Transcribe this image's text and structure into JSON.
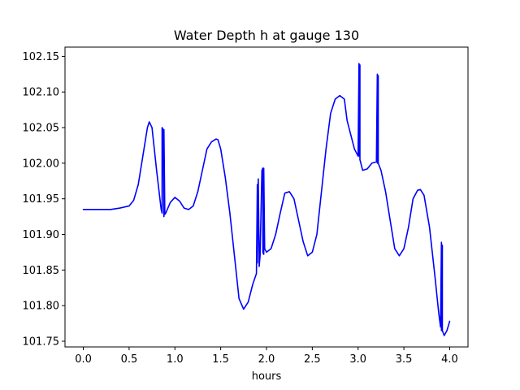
{
  "chart_data": {
    "type": "line",
    "title": "Water Depth h at gauge 130",
    "xlabel": "hours",
    "ylabel": "",
    "xlim": [
      -0.2,
      4.2
    ],
    "ylim": [
      101.742,
      102.163
    ],
    "xticks": [
      0.0,
      0.5,
      1.0,
      1.5,
      2.0,
      2.5,
      3.0,
      3.5,
      4.0
    ],
    "xtick_labels": [
      "0.0",
      "0.5",
      "1.0",
      "1.5",
      "2.0",
      "2.5",
      "3.0",
      "3.5",
      "4.0"
    ],
    "yticks": [
      101.75,
      101.8,
      101.85,
      101.9,
      101.95,
      102.0,
      102.05,
      102.1,
      102.15
    ],
    "ytick_labels": [
      "101.75",
      "101.80",
      "101.85",
      "101.90",
      "101.95",
      "102.00",
      "102.05",
      "102.10",
      "102.15"
    ],
    "grid": false,
    "series": [
      {
        "color": "#0000ff",
        "x": [
          0.0,
          0.1,
          0.2,
          0.3,
          0.4,
          0.5,
          0.55,
          0.6,
          0.65,
          0.7,
          0.72,
          0.75,
          0.8,
          0.85,
          0.86,
          0.86,
          0.87,
          0.88,
          0.88,
          0.89,
          0.89,
          0.9,
          0.95,
          1.0,
          1.05,
          1.1,
          1.15,
          1.2,
          1.25,
          1.3,
          1.35,
          1.4,
          1.45,
          1.47,
          1.5,
          1.55,
          1.6,
          1.65,
          1.7,
          1.75,
          1.8,
          1.85,
          1.89,
          1.9,
          1.9,
          1.91,
          1.92,
          1.92,
          1.93,
          1.95,
          1.96,
          1.96,
          1.97,
          1.97,
          1.98,
          2.0,
          2.05,
          2.1,
          2.15,
          2.2,
          2.25,
          2.3,
          2.35,
          2.4,
          2.45,
          2.5,
          2.55,
          2.6,
          2.65,
          2.7,
          2.75,
          2.8,
          2.85,
          2.88,
          2.92,
          2.96,
          3.0,
          3.01,
          3.01,
          3.02,
          3.02,
          3.05,
          3.1,
          3.15,
          3.2,
          3.21,
          3.21,
          3.22,
          3.22,
          3.25,
          3.3,
          3.35,
          3.4,
          3.45,
          3.5,
          3.55,
          3.6,
          3.65,
          3.68,
          3.72,
          3.78,
          3.84,
          3.88,
          3.9,
          3.91,
          3.91,
          3.92,
          3.92,
          3.94,
          3.97,
          4.0
        ],
        "y": [
          101.935,
          101.935,
          101.935,
          101.935,
          101.937,
          101.94,
          101.948,
          101.97,
          102.01,
          102.05,
          102.058,
          102.05,
          101.99,
          101.935,
          101.93,
          102.05,
          102.048,
          101.925,
          102.047,
          101.928,
          101.928,
          101.93,
          101.945,
          101.952,
          101.947,
          101.937,
          101.935,
          101.94,
          101.96,
          101.99,
          102.02,
          102.03,
          102.034,
          102.033,
          102.02,
          101.98,
          101.93,
          101.87,
          101.81,
          101.795,
          101.805,
          101.83,
          101.845,
          101.97,
          101.86,
          101.978,
          101.87,
          101.855,
          101.87,
          101.99,
          101.993,
          101.875,
          101.872,
          101.993,
          101.88,
          101.875,
          101.88,
          101.9,
          101.93,
          101.958,
          101.96,
          101.95,
          101.92,
          101.89,
          101.87,
          101.875,
          101.9,
          101.96,
          102.02,
          102.07,
          102.09,
          102.095,
          102.09,
          102.06,
          102.04,
          102.02,
          102.01,
          102.14,
          102.01,
          102.138,
          102.005,
          101.99,
          101.992,
          102.0,
          102.002,
          102.125,
          102.0,
          102.123,
          102.0,
          101.99,
          101.96,
          101.92,
          101.88,
          101.87,
          101.88,
          101.91,
          101.95,
          101.962,
          101.963,
          101.955,
          101.91,
          101.84,
          101.79,
          101.77,
          101.889,
          101.765,
          101.885,
          101.765,
          101.758,
          101.765,
          101.778
        ]
      }
    ]
  }
}
